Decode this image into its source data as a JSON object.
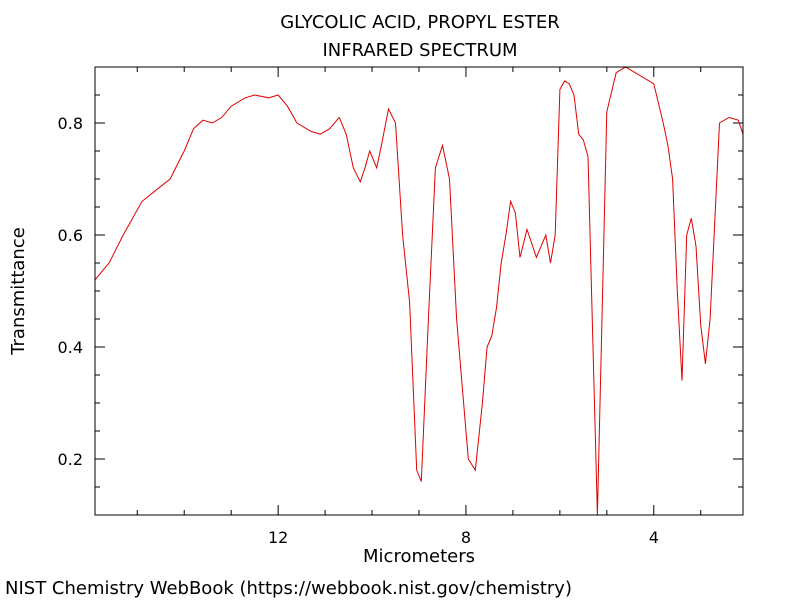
{
  "chart_data": {
    "type": "line",
    "title": "GLYCOLIC ACID, PROPYL ESTER",
    "subtitle": "INFRARED SPECTRUM",
    "xlabel": "Micrometers",
    "ylabel": "Transmittance",
    "xlim": [
      15.9,
      2.1
    ],
    "ylim": [
      0.1,
      0.9
    ],
    "x_reversed": true,
    "xticks": [
      12,
      8,
      4
    ],
    "yticks": [
      0.2,
      0.4,
      0.6,
      0.8
    ],
    "grid": false,
    "line_color": "#e00000",
    "series": [
      {
        "x": [
          15.9,
          15.6,
          15.3,
          15.1,
          14.9,
          14.6,
          14.3,
          14.0,
          13.8,
          13.6,
          13.4,
          13.2,
          13.0,
          12.7,
          12.5,
          12.2,
          12.0,
          11.8,
          11.6,
          11.3,
          11.1,
          10.9,
          10.7,
          10.55,
          10.4,
          10.25,
          10.15,
          10.05,
          9.9,
          9.8,
          9.65,
          9.5,
          9.35,
          9.2,
          9.05,
          8.95,
          8.8,
          8.65,
          8.5,
          8.35,
          8.2,
          8.05,
          7.95,
          7.8,
          7.65,
          7.55,
          7.45,
          7.35,
          7.25,
          7.15,
          7.05,
          6.95,
          6.85,
          6.7,
          6.5,
          6.3,
          6.2,
          6.1,
          6.0,
          5.9,
          5.8,
          5.7,
          5.6,
          5.5,
          5.4,
          5.2,
          5.0,
          4.8,
          4.6,
          4.4,
          4.2,
          4.0,
          3.8,
          3.7,
          3.6,
          3.5,
          3.4,
          3.3,
          3.2,
          3.1,
          3.0,
          2.9,
          2.8,
          2.6,
          2.4,
          2.2,
          2.1
        ],
        "y": [
          0.52,
          0.55,
          0.6,
          0.63,
          0.66,
          0.68,
          0.7,
          0.75,
          0.79,
          0.805,
          0.8,
          0.81,
          0.83,
          0.845,
          0.85,
          0.845,
          0.85,
          0.83,
          0.8,
          0.785,
          0.78,
          0.79,
          0.81,
          0.78,
          0.72,
          0.695,
          0.72,
          0.75,
          0.72,
          0.76,
          0.825,
          0.8,
          0.6,
          0.48,
          0.18,
          0.16,
          0.45,
          0.72,
          0.76,
          0.7,
          0.45,
          0.3,
          0.2,
          0.18,
          0.3,
          0.4,
          0.42,
          0.47,
          0.55,
          0.6,
          0.66,
          0.64,
          0.56,
          0.61,
          0.56,
          0.6,
          0.55,
          0.6,
          0.86,
          0.875,
          0.87,
          0.85,
          0.78,
          0.77,
          0.74,
          0.1,
          0.82,
          0.89,
          0.9,
          0.89,
          0.88,
          0.87,
          0.8,
          0.76,
          0.7,
          0.5,
          0.34,
          0.6,
          0.63,
          0.58,
          0.44,
          0.37,
          0.45,
          0.8,
          0.81,
          0.805,
          0.78
        ]
      }
    ]
  },
  "footer": {
    "credit": "NIST Chemistry WebBook (https://webbook.nist.gov/chemistry)"
  }
}
